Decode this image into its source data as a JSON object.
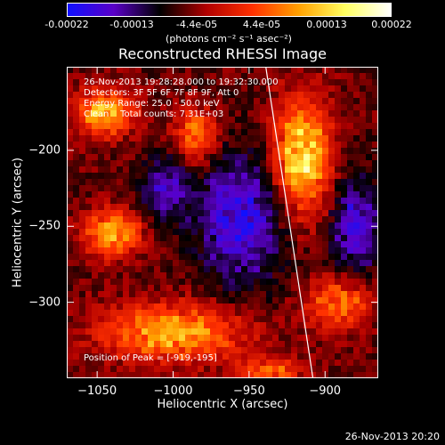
{
  "colorbar": {
    "ticks": [
      "-0.00022",
      "-0.00013",
      "-4.4e-05",
      "4.4e-05",
      "0.00013",
      "0.00022"
    ],
    "unit": "(photons cm⁻² s⁻¹ asec⁻²)",
    "stops": [
      "#1010ff",
      "#5a00c8",
      "#000000",
      "#b00000",
      "#ff3000",
      "#ffa000",
      "#ffff60",
      "#ffffff"
    ]
  },
  "info": {
    "time_range": "26-Nov-2013 19:28:28.000 to 19:32:30.000",
    "detectors": "Detectors: 3F 5F 6F 7F 8F 9F, Att 0",
    "energy": "Energy Range: 25.0 - 50.0 keV",
    "algorithm": "Clean    Total counts: 7.31E+03",
    "peak": "Position of Peak = [-919,-195]"
  },
  "timestamp": "26-Nov-2013 20:20",
  "chart_data": {
    "type": "heatmap",
    "title": "Reconstructed RHESSI Image",
    "xlabel": "Heliocentric X (arcsec)",
    "ylabel": "Heliocentric Y (arcsec)",
    "xlim": [
      -1070,
      -865
    ],
    "ylim": [
      -350,
      -145
    ],
    "xticks": [
      "-1050",
      "-1000",
      "-950",
      "-900"
    ],
    "yticks": [
      "-200",
      "-250",
      "-300"
    ],
    "zlim": [
      -0.00022,
      0.00022
    ],
    "peak": [
      -919,
      -195
    ],
    "limb_line": {
      "x": [
        -939,
        -908
      ],
      "y": [
        -145,
        -350
      ]
    },
    "hot_regions": [
      {
        "x": -915,
        "y": -205,
        "rx": 22,
        "ry": 45,
        "value": 0.00022
      },
      {
        "x": -1045,
        "y": -175,
        "rx": 22,
        "ry": 18,
        "value": 0.00018
      },
      {
        "x": -985,
        "y": -190,
        "rx": 16,
        "ry": 20,
        "value": 0.00015
      },
      {
        "x": -1040,
        "y": -255,
        "rx": 22,
        "ry": 18,
        "value": 0.00017
      },
      {
        "x": -1000,
        "y": -320,
        "rx": 55,
        "ry": 22,
        "value": 0.00017
      },
      {
        "x": -890,
        "y": -300,
        "rx": 25,
        "ry": 20,
        "value": 0.00014
      },
      {
        "x": -935,
        "y": -345,
        "rx": 25,
        "ry": 10,
        "value": 0.00012
      }
    ],
    "cold_regions": [
      {
        "x": -955,
        "y": -245,
        "rx": 35,
        "ry": 50,
        "value": -0.00013
      },
      {
        "x": -880,
        "y": -250,
        "rx": 20,
        "ry": 40,
        "value": -0.00012
      },
      {
        "x": -1005,
        "y": -225,
        "rx": 18,
        "ry": 25,
        "value": -0.0001
      }
    ]
  }
}
